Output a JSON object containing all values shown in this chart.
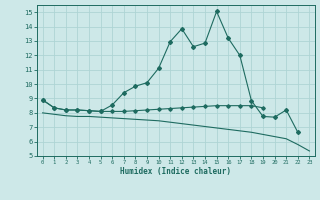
{
  "x": [
    0,
    1,
    2,
    3,
    4,
    5,
    6,
    7,
    8,
    9,
    10,
    11,
    12,
    13,
    14,
    15,
    16,
    17,
    18,
    19,
    20,
    21,
    22,
    23
  ],
  "line1": [
    8.9,
    8.35,
    8.2,
    8.2,
    8.15,
    8.1,
    8.55,
    9.4,
    9.85,
    10.1,
    11.1,
    12.95,
    13.85,
    12.6,
    12.85,
    15.05,
    13.2,
    12.0,
    8.85,
    7.75,
    7.7,
    8.2,
    6.65,
    null
  ],
  "line2": [
    8.9,
    8.35,
    8.2,
    8.2,
    8.15,
    8.1,
    8.1,
    8.1,
    8.15,
    8.2,
    8.25,
    8.3,
    8.35,
    8.4,
    8.45,
    8.5,
    8.5,
    8.5,
    8.5,
    8.35,
    null,
    null,
    null,
    null
  ],
  "line3": [
    8.0,
    7.9,
    7.8,
    7.75,
    7.75,
    7.7,
    7.65,
    7.6,
    7.55,
    7.5,
    7.45,
    7.35,
    7.25,
    7.15,
    7.05,
    6.95,
    6.85,
    6.75,
    6.65,
    6.5,
    6.35,
    6.2,
    5.8,
    5.35
  ],
  "bg_color": "#cde8e8",
  "line_color": "#1e6b60",
  "grid_color": "#aed4d4",
  "xlabel": "Humidex (Indice chaleur)",
  "ylim": [
    5,
    15.5
  ],
  "xlim": [
    -0.5,
    23.5
  ],
  "yticks": [
    5,
    6,
    7,
    8,
    9,
    10,
    11,
    12,
    13,
    14,
    15
  ],
  "xticks": [
    0,
    1,
    2,
    3,
    4,
    5,
    6,
    7,
    8,
    9,
    10,
    11,
    12,
    13,
    14,
    15,
    16,
    17,
    18,
    19,
    20,
    21,
    22,
    23
  ]
}
